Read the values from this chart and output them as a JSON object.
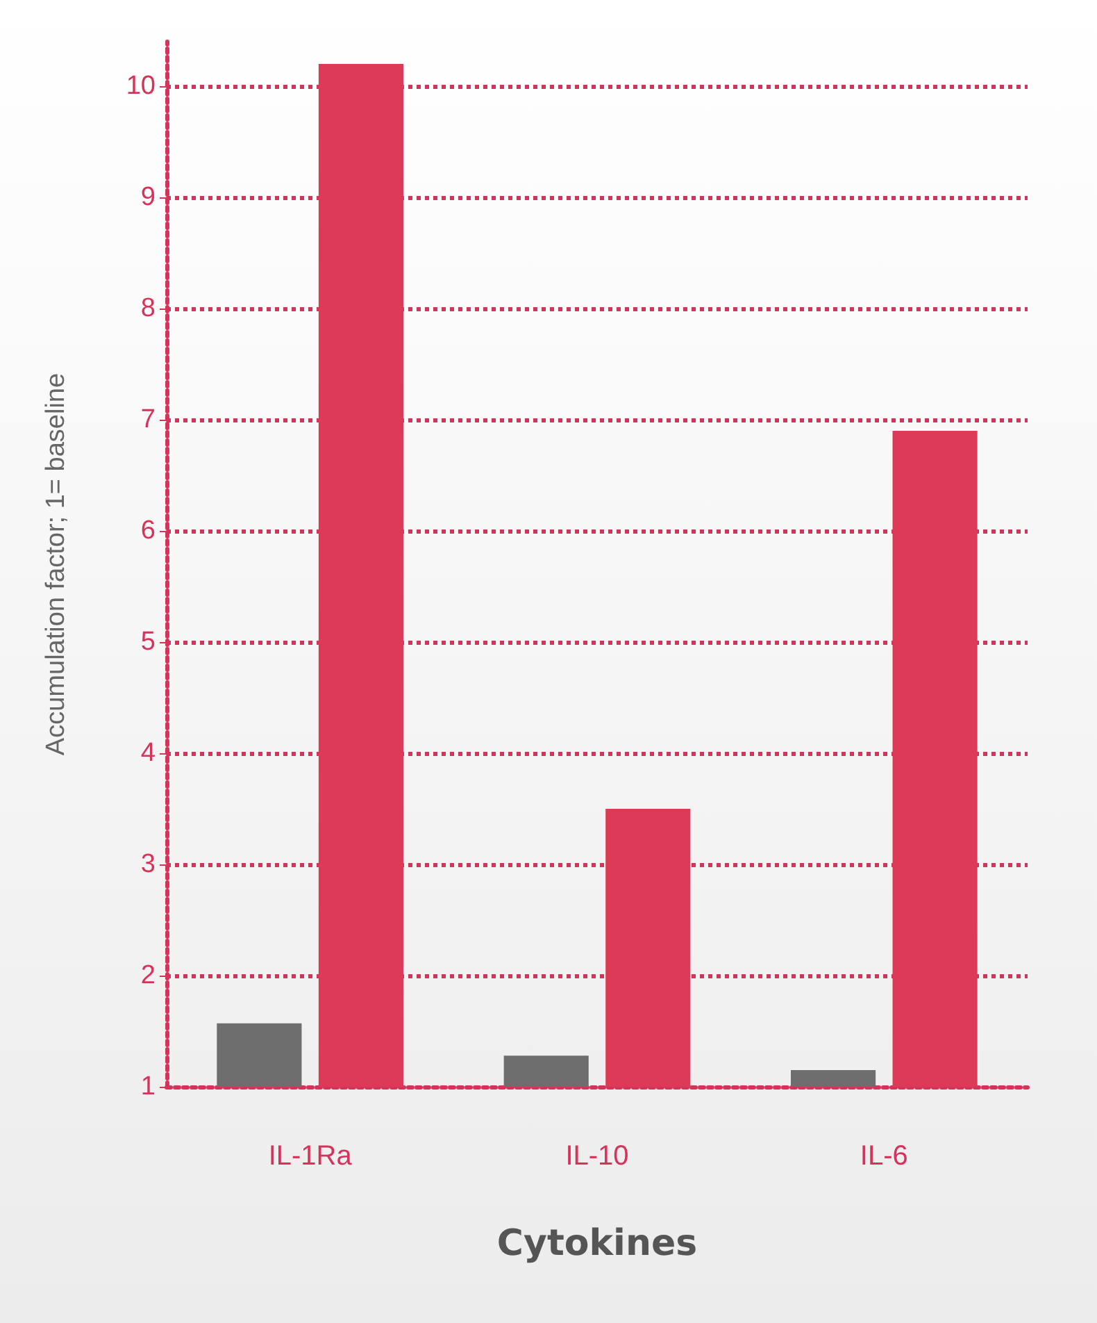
{
  "chart_data": {
    "type": "bar",
    "xlabel": "Cytokines",
    "ylabel": "Accumulation factor; 1= baseline",
    "categories": [
      "IL-1Ra",
      "IL-10",
      "IL-6"
    ],
    "series": [
      {
        "color": "#6e6e6e",
        "values": [
          1.57,
          1.28,
          1.15
        ]
      },
      {
        "color": "#dc3a57",
        "values": [
          10.2,
          3.5,
          6.9
        ]
      }
    ],
    "ylim": [
      1,
      10.4
    ],
    "yticks": [
      1,
      2,
      3,
      4,
      5,
      6,
      7,
      8,
      9,
      10
    ],
    "grid": "y"
  }
}
